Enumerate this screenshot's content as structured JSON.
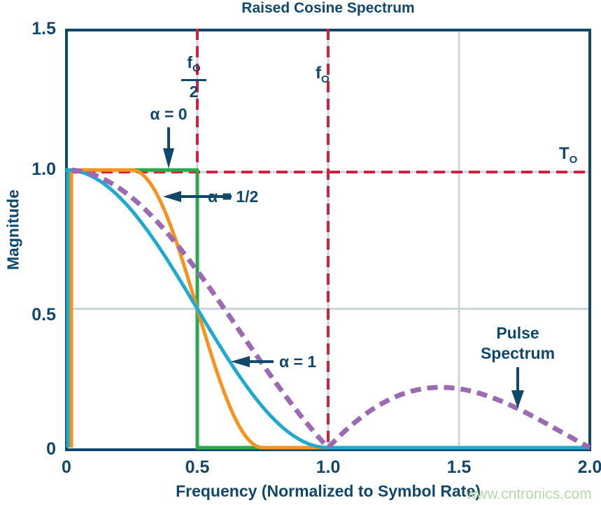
{
  "figure": {
    "title": "Raised Cosine Spectrum",
    "watermark": "www.cntronics.com"
  },
  "chart_data": {
    "type": "line",
    "title": "Raised Cosine Spectrum",
    "xlabel": "Frequency (Normalized to Symbol Rate)",
    "ylabel": "Magnitude",
    "xlim": [
      0,
      2.0
    ],
    "ylim": [
      0,
      1.5
    ],
    "x_ticks": {
      "values": [
        0,
        0.5,
        1.0,
        1.5,
        2.0
      ],
      "labels": [
        "0",
        "0.5",
        "1.0",
        "1.5",
        "2.0"
      ]
    },
    "y_ticks": {
      "values": [
        0,
        0.5,
        1.0,
        1.5
      ],
      "labels": [
        "0",
        "0.5",
        "1.0",
        "1.5"
      ]
    },
    "gridlines": {
      "vertical_x": [
        0.5,
        1.0,
        1.5
      ],
      "horizontal_y": [
        0.5,
        1.0
      ]
    },
    "reference_lines": {
      "vertical_x": [
        0.5,
        1.0
      ],
      "horizontal_y": [
        1.0
      ],
      "style": "red dashed"
    },
    "series": [
      {
        "id": "alpha-0",
        "label": "α = 0",
        "type": "raised_cosine",
        "alpha": 0,
        "color": "#2ba84e",
        "width": 5,
        "key_points": [
          [
            0,
            1
          ],
          [
            0.5,
            1
          ],
          [
            0.5,
            0
          ],
          [
            2,
            0
          ]
        ]
      },
      {
        "id": "alpha-half",
        "label": "α = 1/2",
        "type": "raised_cosine",
        "alpha": 0.5,
        "color": "#f6921e",
        "width": 5,
        "key_points": [
          [
            0,
            1
          ],
          [
            0.25,
            1
          ],
          [
            0.5,
            0.5
          ],
          [
            0.75,
            0
          ],
          [
            2,
            0
          ]
        ]
      },
      {
        "id": "alpha-1",
        "label": "α = 1",
        "type": "raised_cosine",
        "alpha": 1,
        "color": "#1fa9ce",
        "width": 5,
        "key_points": [
          [
            0,
            1
          ],
          [
            0.5,
            0.5
          ],
          [
            1,
            0
          ],
          [
            2,
            0
          ]
        ]
      },
      {
        "id": "pulse-spectrum",
        "label": "Pulse Spectrum",
        "type": "sinc_magnitude",
        "color": "#9c6ab2",
        "width": 7,
        "dash": "15 9",
        "points": [
          [
            0,
            1
          ],
          [
            0.25,
            0.9
          ],
          [
            0.5,
            0.637
          ],
          [
            0.75,
            0.3
          ],
          [
            1,
            0
          ],
          [
            1.25,
            0.18
          ],
          [
            1.43,
            0.217
          ],
          [
            1.5,
            0.212
          ],
          [
            1.75,
            0.129
          ],
          [
            2,
            0
          ]
        ]
      }
    ],
    "colors": {
      "text": "#10486c",
      "axis": "#10486c",
      "gridline": "#ccd6dd",
      "reference": "#d0213c",
      "watermark": "#b4d9a7",
      "background": "#ffffff"
    },
    "legend_position": "none (inline annotations with arrows)"
  },
  "annotations": {
    "alpha_0": "α = 0",
    "alpha_half": "α = 1/2",
    "alpha_1": "α = 1",
    "pulse_line1": "Pulse",
    "pulse_line2": "Spectrum",
    "half_symbol_rate_frequency": {
      "numerator": "f",
      "numerator_sub": "O",
      "denominator": "2"
    },
    "symbol_rate_frequency": {
      "main": "f",
      "sub": "O"
    },
    "symbol_period": {
      "main": "T",
      "sub": "O"
    }
  }
}
